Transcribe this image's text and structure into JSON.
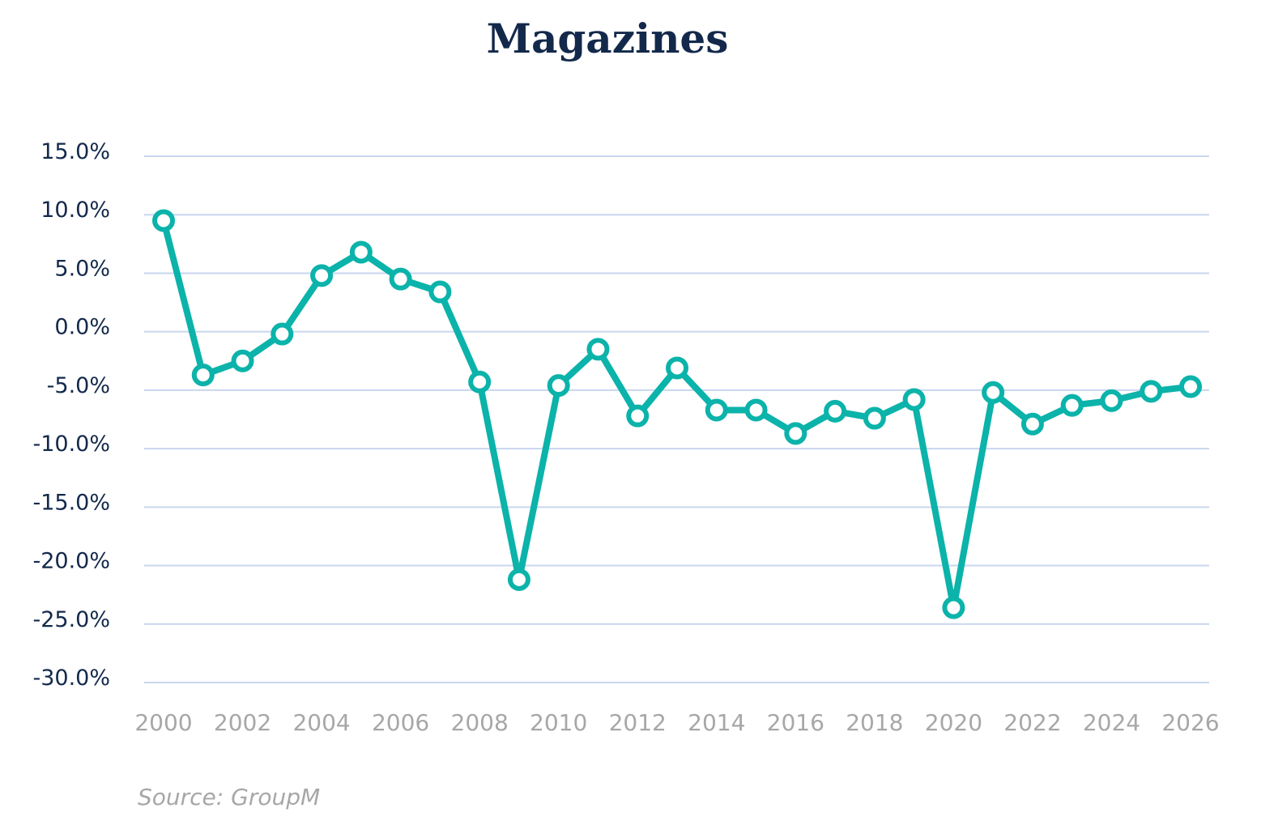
{
  "chart_data": {
    "type": "line",
    "title": "Magazines",
    "xlabel": "",
    "ylabel": "",
    "x_ticks": [
      "2000",
      "2002",
      "2004",
      "2006",
      "2008",
      "2010",
      "2012",
      "2014",
      "2016",
      "2018",
      "2020",
      "2022",
      "2024",
      "2026"
    ],
    "y_ticks": [
      "15.0%",
      "10.0%",
      "5.0%",
      "0.0%",
      "-5.0%",
      "-10.0%",
      "-15.0%",
      "-20.0%",
      "-25.0%",
      "-30.0%"
    ],
    "ylim": [
      -30,
      15
    ],
    "xlim": [
      2000,
      2026
    ],
    "grid": true,
    "legend": "none",
    "series": [
      {
        "color": "#0bb3aa",
        "x": [
          2000,
          2001,
          2002,
          2003,
          2004,
          2005,
          2006,
          2007,
          2008,
          2009,
          2010,
          2011,
          2012,
          2013,
          2014,
          2015,
          2016,
          2017,
          2018,
          2019,
          2020,
          2021,
          2022,
          2023,
          2024,
          2025,
          2026
        ],
        "values": [
          9.5,
          -3.7,
          -2.5,
          -0.2,
          4.8,
          6.8,
          4.5,
          3.4,
          -4.3,
          -21.2,
          -4.6,
          -1.5,
          -7.2,
          -3.1,
          -6.7,
          -6.7,
          -8.7,
          -6.8,
          -7.4,
          -5.8,
          -23.6,
          -5.2,
          -7.9,
          -6.3,
          -5.9,
          -5.1,
          -4.7
        ]
      }
    ]
  },
  "source": "Source: GroupM"
}
